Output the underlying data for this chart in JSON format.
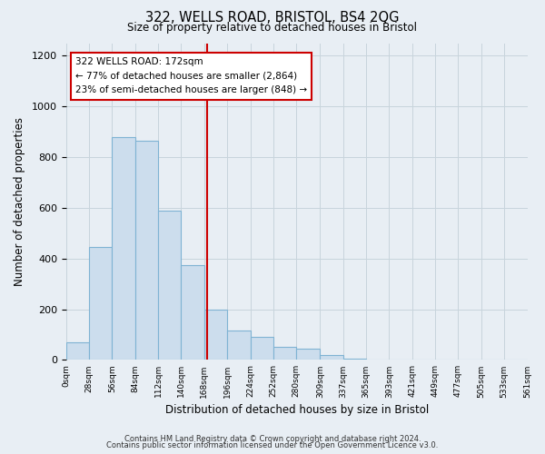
{
  "title": "322, WELLS ROAD, BRISTOL, BS4 2QG",
  "subtitle": "Size of property relative to detached houses in Bristol",
  "xlabel": "Distribution of detached houses by size in Bristol",
  "ylabel": "Number of detached properties",
  "bar_edges": [
    0,
    28,
    56,
    84,
    112,
    140,
    168,
    196,
    224,
    252,
    280,
    309,
    337,
    365,
    393,
    421,
    449,
    477,
    505,
    533,
    561
  ],
  "bar_heights": [
    68,
    445,
    880,
    865,
    590,
    375,
    200,
    115,
    90,
    52,
    45,
    18,
    5,
    2,
    1,
    0,
    0,
    0,
    0,
    0
  ],
  "bar_color": "#ccdded",
  "bar_edge_color": "#7fb3d3",
  "property_line_x": 172,
  "property_line_color": "#cc0000",
  "ylim": [
    0,
    1250
  ],
  "yticks": [
    0,
    200,
    400,
    600,
    800,
    1000,
    1200
  ],
  "x_tick_labels": [
    "0sqm",
    "28sqm",
    "56sqm",
    "84sqm",
    "112sqm",
    "140sqm",
    "168sqm",
    "196sqm",
    "224sqm",
    "252sqm",
    "280sqm",
    "309sqm",
    "337sqm",
    "365sqm",
    "393sqm",
    "421sqm",
    "449sqm",
    "477sqm",
    "505sqm",
    "533sqm",
    "561sqm"
  ],
  "annotation_title": "322 WELLS ROAD: 172sqm",
  "annotation_line1": "← 77% of detached houses are smaller (2,864)",
  "annotation_line2": "23% of semi-detached houses are larger (848) →",
  "annotation_box_color": "#cc0000",
  "footer_line1": "Contains HM Land Registry data © Crown copyright and database right 2024.",
  "footer_line2": "Contains public sector information licensed under the Open Government Licence v3.0.",
  "bg_color": "#e8eef4",
  "plot_bg_color": "#e8eef4",
  "grid_color": "#c8d4dc"
}
